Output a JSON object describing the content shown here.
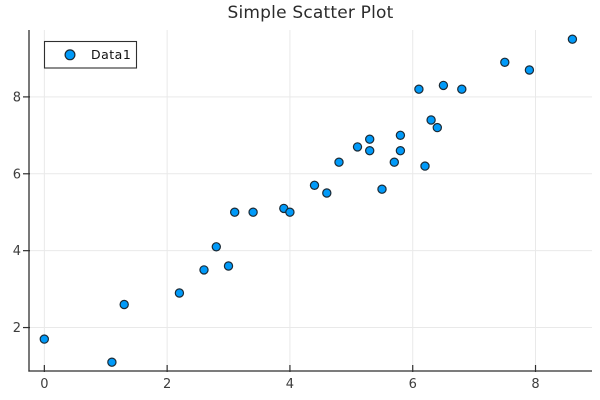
{
  "title": "Simple Scatter Plot",
  "chart_data": {
    "type": "scatter",
    "title": "Simple Scatter Plot",
    "xlabel": "",
    "ylabel": "",
    "xlim": [
      -0.25,
      8.92
    ],
    "ylim": [
      0.87,
      9.74
    ],
    "xticks": [
      0,
      2,
      4,
      6,
      8
    ],
    "yticks": [
      2,
      4,
      6,
      8
    ],
    "grid": true,
    "legend_position": "top-left",
    "series": [
      {
        "name": "Data1",
        "marker": "circle",
        "color": "#009af9",
        "stroke_color": "#1b2a35",
        "x": [
          0.0,
          1.1,
          1.3,
          2.2,
          2.6,
          2.8,
          3.0,
          3.1,
          3.4,
          3.9,
          4.0,
          4.4,
          4.6,
          4.8,
          5.1,
          5.3,
          5.3,
          5.5,
          5.7,
          5.8,
          5.8,
          6.1,
          6.2,
          6.3,
          6.4,
          6.5,
          6.8,
          7.5,
          7.9,
          8.6
        ],
        "y": [
          1.7,
          1.1,
          2.6,
          2.9,
          3.5,
          4.1,
          3.6,
          5.0,
          5.0,
          5.1,
          5.0,
          5.7,
          5.5,
          6.3,
          6.7,
          6.9,
          6.6,
          5.6,
          6.3,
          7.0,
          6.6,
          8.2,
          6.2,
          7.4,
          7.2,
          8.3,
          8.2,
          8.9,
          8.7,
          9.5
        ]
      }
    ]
  },
  "colors": {
    "background": "#ffffff",
    "grid": "#e9e9e9",
    "spine": "#2f2f2f",
    "tick_label": "#3d3d3d",
    "title": "#2b2b2b",
    "legend_border": "#2f2f2f",
    "legend_bg": "#ffffff"
  }
}
